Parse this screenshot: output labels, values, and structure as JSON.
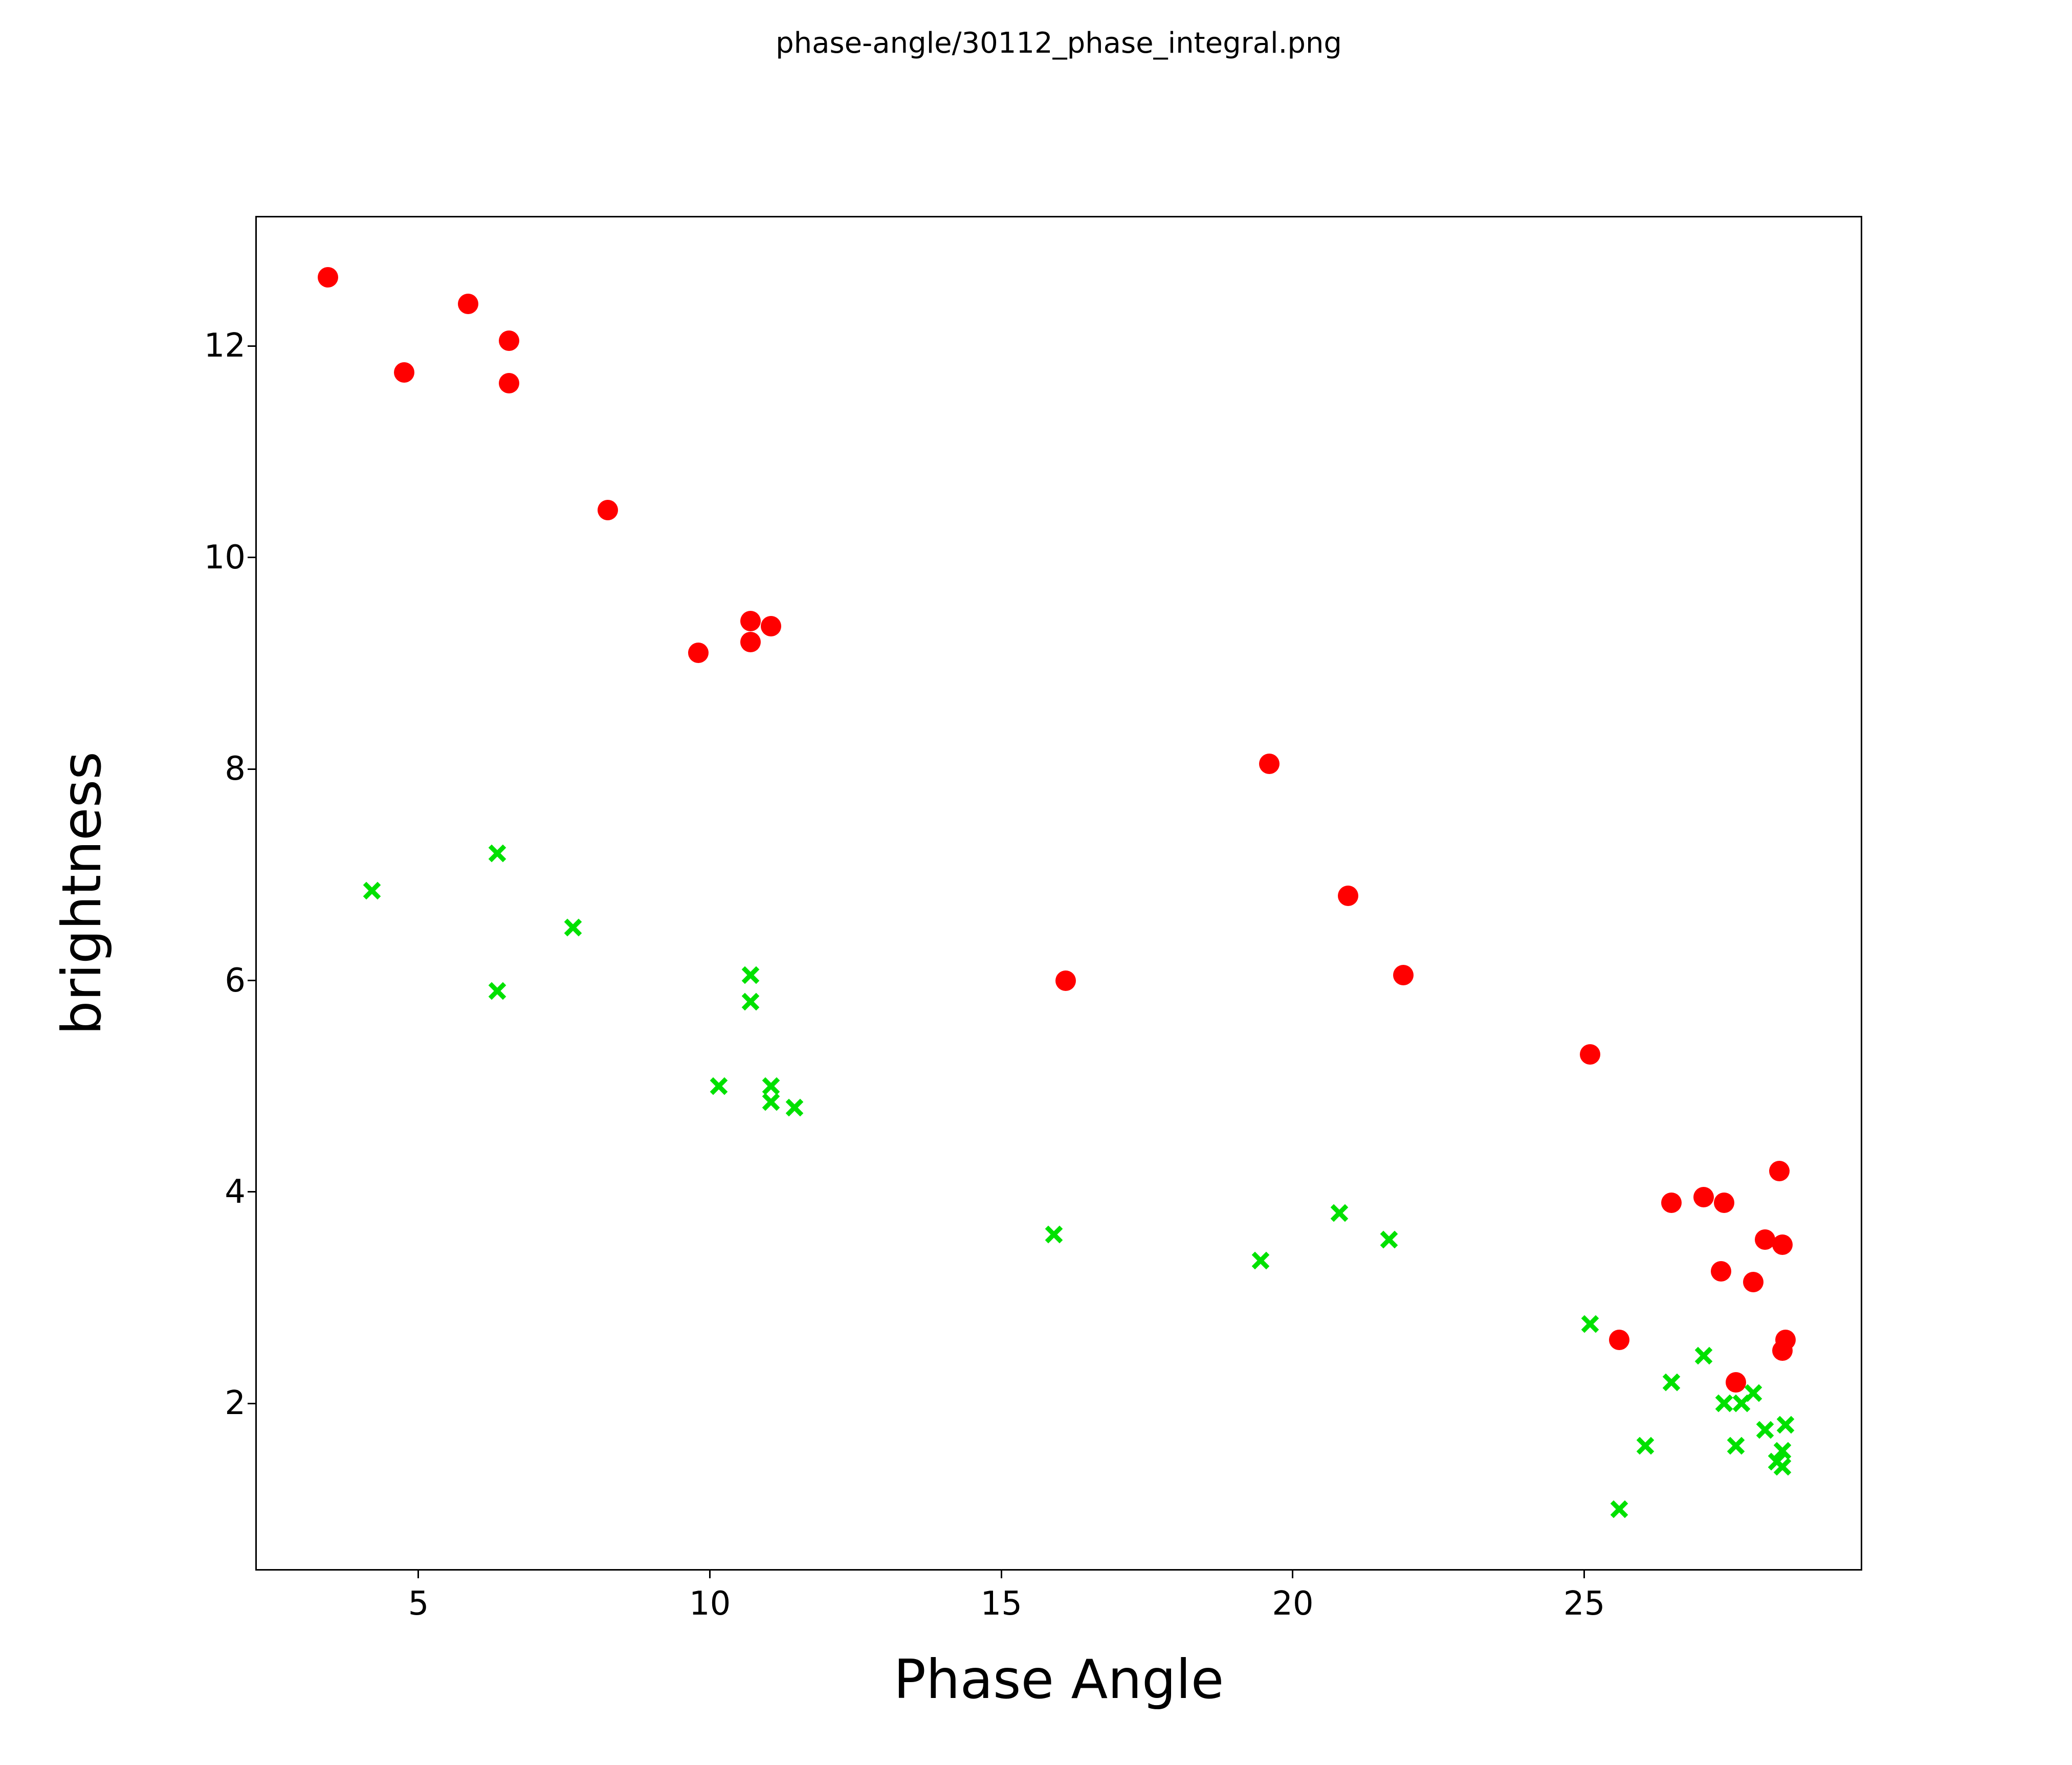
{
  "title": "phase-angle/30112_phase_integral.png",
  "chart_data": {
    "type": "scatter",
    "title": "phase-angle/30112_phase_integral.png",
    "xlabel": "Phase Angle",
    "ylabel": "brightness",
    "xlim": [
      2.2,
      29.77
    ],
    "ylim": [
      0.42,
      13.23
    ],
    "xticks": [
      5,
      10,
      15,
      20,
      25
    ],
    "yticks": [
      2,
      4,
      6,
      8,
      10,
      12
    ],
    "grid": false,
    "legend_position": "none",
    "series": [
      {
        "name": "red-circles",
        "marker": "circle",
        "color": "#ff0000",
        "points": [
          [
            3.45,
            12.65
          ],
          [
            5.85,
            12.4
          ],
          [
            4.75,
            11.75
          ],
          [
            6.55,
            12.05
          ],
          [
            6.55,
            11.65
          ],
          [
            8.25,
            10.45
          ],
          [
            9.8,
            9.1
          ],
          [
            10.7,
            9.4
          ],
          [
            10.7,
            9.2
          ],
          [
            11.05,
            9.35
          ],
          [
            19.6,
            8.05
          ],
          [
            16.1,
            6.0
          ],
          [
            20.95,
            6.8
          ],
          [
            21.9,
            6.05
          ],
          [
            25.1,
            5.3
          ],
          [
            28.35,
            4.2
          ],
          [
            26.5,
            3.9
          ],
          [
            27.05,
            3.95
          ],
          [
            27.4,
            3.9
          ],
          [
            28.1,
            3.55
          ],
          [
            28.4,
            3.5
          ],
          [
            27.35,
            3.25
          ],
          [
            27.9,
            3.15
          ],
          [
            25.6,
            2.6
          ],
          [
            28.45,
            2.6
          ],
          [
            28.4,
            2.5
          ],
          [
            27.6,
            2.2
          ]
        ]
      },
      {
        "name": "green-crosses",
        "marker": "x",
        "color": "#00e100",
        "points": [
          [
            4.2,
            6.85
          ],
          [
            6.35,
            7.2
          ],
          [
            6.35,
            5.9
          ],
          [
            7.65,
            6.5
          ],
          [
            10.15,
            5.0
          ],
          [
            10.7,
            6.05
          ],
          [
            10.7,
            5.8
          ],
          [
            11.05,
            5.0
          ],
          [
            11.05,
            4.85
          ],
          [
            11.45,
            4.8
          ],
          [
            15.9,
            3.6
          ],
          [
            19.45,
            3.35
          ],
          [
            20.8,
            3.8
          ],
          [
            21.65,
            3.55
          ],
          [
            25.1,
            2.75
          ],
          [
            27.05,
            2.45
          ],
          [
            26.5,
            2.2
          ],
          [
            27.4,
            2.0
          ],
          [
            27.7,
            2.0
          ],
          [
            27.9,
            2.1
          ],
          [
            28.1,
            1.75
          ],
          [
            28.45,
            1.8
          ],
          [
            27.6,
            1.6
          ],
          [
            26.05,
            1.6
          ],
          [
            25.6,
            1.0
          ],
          [
            28.4,
            1.55
          ],
          [
            28.3,
            1.45
          ],
          [
            28.4,
            1.4
          ]
        ]
      }
    ]
  }
}
